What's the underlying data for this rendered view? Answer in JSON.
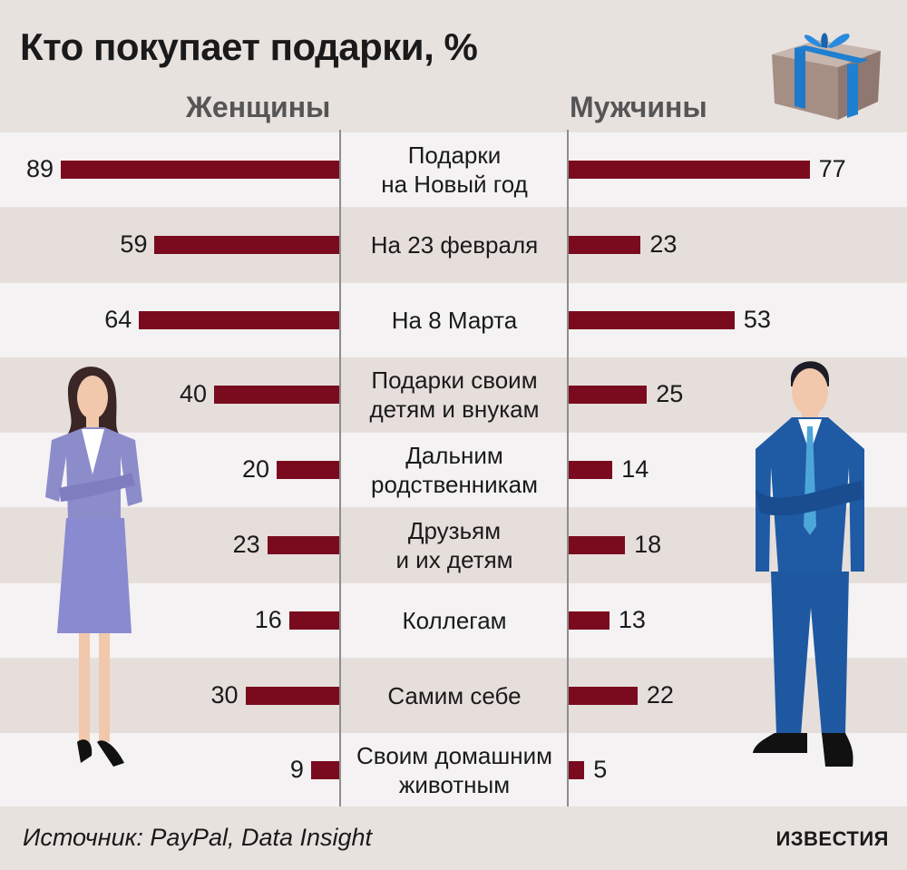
{
  "title": "Кто покупает подарки, %",
  "headers": {
    "women": "Женщины",
    "men": "Мужчины"
  },
  "source": "Источник: PayPal, Data Insight",
  "brand": "ИЗВЕСТИЯ",
  "icons": {
    "top_right": "gift-box-icon",
    "left": "woman-figure-icon",
    "right": "man-figure-icon"
  },
  "colors": {
    "bar": "#7a0b1e",
    "background": "#e8e2df",
    "row_light": "#f4f2f2",
    "row_dark": "#e6dedb"
  },
  "chart_data": {
    "type": "bar",
    "title": "Кто покупает подарки, %",
    "categories": [
      "Подарки\nна Новый год",
      "На 23 февраля",
      "На 8 Марта",
      "Подарки своим\nдетям и внукам",
      "Дальним\nродственникам",
      "Друзьям\nи их детям",
      "Коллегам",
      "Самим себе",
      "Своим домашним\nживотным"
    ],
    "series": [
      {
        "name": "Женщины",
        "values": [
          89,
          59,
          64,
          40,
          20,
          23,
          16,
          30,
          9
        ]
      },
      {
        "name": "Мужчины",
        "values": [
          77,
          23,
          53,
          25,
          14,
          18,
          13,
          22,
          5
        ]
      }
    ],
    "xlabel": "",
    "ylabel": "",
    "orientation": "horizontal-diverging",
    "grid": false
  }
}
